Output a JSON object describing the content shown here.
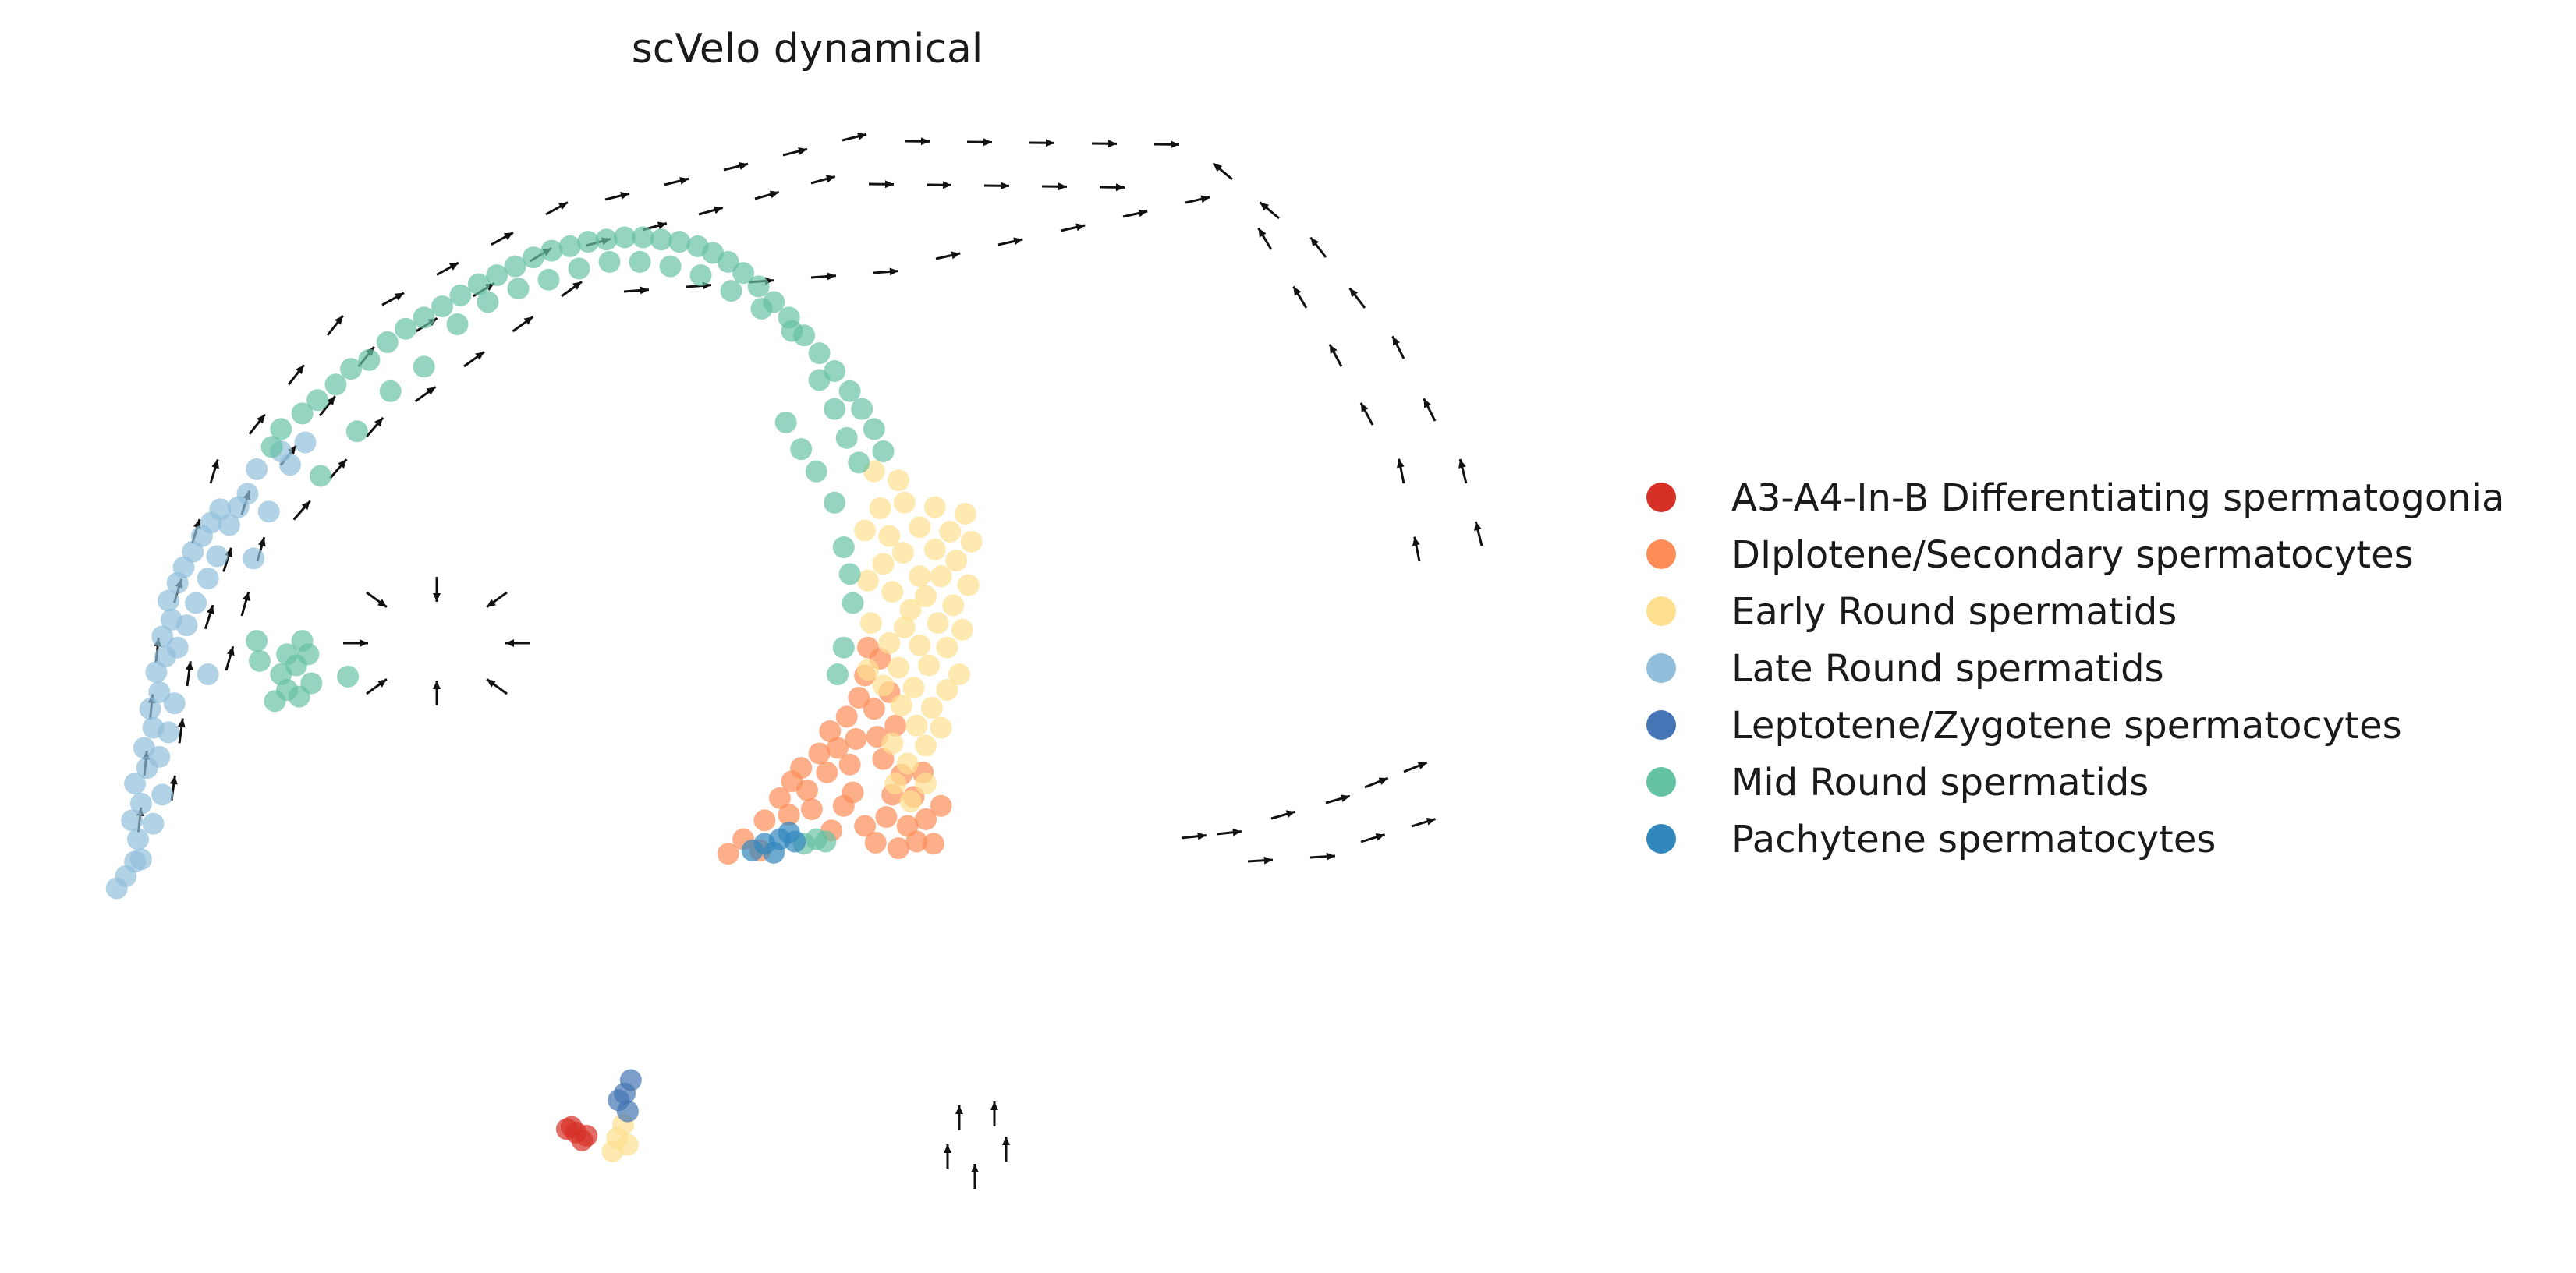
{
  "chart_data": {
    "type": "scatter",
    "title": "scVelo dynamical",
    "xlabel": "",
    "ylabel": "",
    "grid": false,
    "axes_visible": false,
    "xlim": [
      0,
      100
    ],
    "ylim": [
      0,
      100
    ],
    "legend_position": "right",
    "overlay": "velocity arrows (quiver field)",
    "series": [
      {
        "name": "A3-A4-In-B Differentiating spermatogonia",
        "color": "#d73027",
        "points": [
          [
            34.5,
            8.0
          ],
          [
            35.2,
            6.8
          ],
          [
            34.8,
            7.5
          ],
          [
            35.5,
            7.2
          ],
          [
            34.2,
            7.8
          ]
        ]
      },
      {
        "name": "DIplotene/Secondary spermatocytes",
        "color": "#fc8d59",
        "points": [
          [
            44.8,
            32.5
          ],
          [
            45.8,
            33.8
          ],
          [
            46.9,
            32.8
          ],
          [
            47.2,
            35.5
          ],
          [
            48.2,
            37.5
          ],
          [
            48.8,
            36.0
          ],
          [
            49.0,
            39.0
          ],
          [
            49.6,
            40.2
          ],
          [
            50.0,
            38.2
          ],
          [
            50.3,
            36.5
          ],
          [
            50.8,
            41.5
          ],
          [
            51.3,
            39.8
          ],
          [
            51.5,
            43.5
          ],
          [
            52.0,
            42.0
          ],
          [
            52.6,
            44.8
          ],
          [
            52.8,
            40.5
          ],
          [
            53.4,
            46.5
          ],
          [
            53.0,
            38.0
          ],
          [
            53.8,
            48.5
          ],
          [
            54.4,
            45.5
          ],
          [
            54.6,
            43.0
          ],
          [
            55.0,
            41.0
          ],
          [
            55.4,
            47.0
          ],
          [
            55.8,
            44.0
          ],
          [
            53.8,
            35.0
          ],
          [
            54.5,
            33.5
          ],
          [
            55.2,
            35.8
          ],
          [
            56.0,
            33.0
          ],
          [
            56.6,
            35.0
          ],
          [
            57.2,
            33.6
          ],
          [
            57.8,
            35.6
          ],
          [
            58.3,
            33.4
          ],
          [
            55.6,
            37.8
          ],
          [
            57.0,
            37.6
          ],
          [
            52.4,
            36.8
          ],
          [
            51.6,
            34.6
          ],
          [
            54.0,
            51.0
          ],
          [
            54.8,
            50.0
          ],
          [
            53.2,
            42.8
          ],
          [
            56.2,
            39.6
          ],
          [
            58.8,
            36.8
          ],
          [
            57.6,
            39.8
          ]
        ]
      },
      {
        "name": "Early Round spermatids",
        "color": "#fee090",
        "points": [
          [
            53.8,
            61.5
          ],
          [
            54.8,
            63.5
          ],
          [
            55.4,
            61.0
          ],
          [
            56.4,
            64.0
          ],
          [
            55.0,
            58.5
          ],
          [
            56.3,
            59.5
          ],
          [
            57.4,
            61.8
          ],
          [
            58.4,
            63.6
          ],
          [
            57.4,
            57.4
          ],
          [
            58.4,
            59.8
          ],
          [
            59.4,
            61.4
          ],
          [
            60.4,
            63.0
          ],
          [
            55.6,
            56.0
          ],
          [
            56.8,
            54.4
          ],
          [
            57.8,
            55.6
          ],
          [
            58.8,
            57.4
          ],
          [
            59.8,
            58.8
          ],
          [
            60.8,
            60.5
          ],
          [
            54.2,
            53.2
          ],
          [
            55.4,
            51.4
          ],
          [
            56.4,
            52.8
          ],
          [
            57.4,
            51.2
          ],
          [
            58.6,
            53.2
          ],
          [
            59.6,
            54.8
          ],
          [
            60.6,
            56.6
          ],
          [
            54.0,
            49.0
          ],
          [
            55.0,
            47.6
          ],
          [
            56.0,
            49.2
          ],
          [
            57.0,
            47.4
          ],
          [
            58.0,
            49.4
          ],
          [
            59.2,
            51.0
          ],
          [
            60.2,
            52.6
          ],
          [
            56.2,
            45.8
          ],
          [
            57.2,
            44.0
          ],
          [
            58.2,
            45.6
          ],
          [
            59.2,
            47.2
          ],
          [
            60.0,
            48.6
          ],
          [
            55.6,
            42.4
          ],
          [
            56.6,
            40.6
          ],
          [
            57.8,
            42.2
          ],
          [
            58.8,
            43.8
          ],
          [
            55.8,
            38.8
          ],
          [
            56.8,
            37.2
          ],
          [
            57.8,
            38.8
          ],
          [
            54.0,
            57.0
          ],
          [
            56.0,
            66.0
          ],
          [
            54.4,
            66.8
          ],
          [
            37.5,
            7.0
          ],
          [
            37.9,
            8.2
          ],
          [
            37.2,
            5.8
          ],
          [
            38.2,
            6.4
          ]
        ]
      },
      {
        "name": "Late Round spermatids",
        "color": "#91bfdb",
        "points": [
          [
            5.2,
            30.5
          ],
          [
            5.8,
            31.8
          ],
          [
            6.0,
            33.8
          ],
          [
            5.6,
            35.5
          ],
          [
            6.2,
            37.0
          ],
          [
            5.8,
            38.8
          ],
          [
            6.6,
            40.2
          ],
          [
            6.4,
            42.0
          ],
          [
            7.0,
            43.8
          ],
          [
            6.8,
            45.5
          ],
          [
            7.4,
            47.0
          ],
          [
            7.2,
            48.8
          ],
          [
            7.8,
            50.2
          ],
          [
            7.6,
            52.0
          ],
          [
            8.2,
            53.5
          ],
          [
            8.0,
            55.2
          ],
          [
            8.6,
            56.8
          ],
          [
            9.0,
            58.2
          ],
          [
            9.6,
            59.6
          ],
          [
            10.2,
            61.0
          ],
          [
            10.8,
            62.2
          ],
          [
            11.4,
            63.4
          ],
          [
            12.0,
            62.0
          ],
          [
            12.6,
            63.6
          ],
          [
            13.2,
            64.8
          ],
          [
            8.6,
            51.0
          ],
          [
            9.2,
            53.0
          ],
          [
            9.8,
            55.0
          ],
          [
            10.6,
            57.2
          ],
          [
            11.2,
            59.2
          ],
          [
            7.4,
            41.2
          ],
          [
            8.0,
            43.4
          ],
          [
            8.4,
            46.0
          ],
          [
            6.2,
            32.0
          ],
          [
            7.0,
            35.2
          ],
          [
            7.6,
            37.8
          ],
          [
            4.6,
            29.4
          ],
          [
            10.6,
            48.6
          ],
          [
            13.6,
            59.0
          ],
          [
            14.6,
            63.2
          ],
          [
            16.0,
            67.4
          ],
          [
            17.0,
            69.4
          ],
          [
            13.8,
            67.0
          ],
          [
            15.4,
            68.6
          ]
        ]
      },
      {
        "name": "Leptotene/Zygotene spermatocytes",
        "color": "#4575b4",
        "points": [
          [
            38.0,
            11.0
          ],
          [
            38.4,
            12.2
          ],
          [
            37.6,
            10.4
          ],
          [
            38.2,
            9.4
          ]
        ]
      },
      {
        "name": "Mid Round spermatids",
        "color": "#66c2a5",
        "points": [
          [
            14.8,
            69.0
          ],
          [
            15.4,
            70.6
          ],
          [
            16.8,
            72.0
          ],
          [
            17.8,
            73.2
          ],
          [
            19.0,
            74.6
          ],
          [
            20.0,
            76.0
          ],
          [
            21.2,
            76.8
          ],
          [
            22.4,
            78.4
          ],
          [
            23.6,
            79.6
          ],
          [
            24.8,
            80.6
          ],
          [
            26.0,
            81.6
          ],
          [
            27.2,
            82.6
          ],
          [
            28.4,
            83.6
          ],
          [
            29.6,
            84.4
          ],
          [
            30.8,
            85.2
          ],
          [
            32.0,
            86.0
          ],
          [
            33.2,
            86.6
          ],
          [
            34.4,
            87.0
          ],
          [
            35.6,
            87.4
          ],
          [
            36.8,
            87.6
          ],
          [
            38.0,
            87.8
          ],
          [
            39.2,
            87.8
          ],
          [
            40.4,
            87.6
          ],
          [
            41.6,
            87.4
          ],
          [
            42.8,
            87.0
          ],
          [
            43.8,
            86.4
          ],
          [
            44.8,
            85.6
          ],
          [
            45.8,
            84.6
          ],
          [
            46.8,
            83.4
          ],
          [
            47.8,
            82.0
          ],
          [
            48.8,
            80.6
          ],
          [
            49.8,
            79.0
          ],
          [
            50.8,
            77.4
          ],
          [
            51.8,
            75.8
          ],
          [
            52.8,
            74.0
          ],
          [
            53.6,
            72.4
          ],
          [
            54.4,
            70.6
          ],
          [
            55.0,
            68.6
          ],
          [
            27.0,
            80.0
          ],
          [
            29.0,
            82.0
          ],
          [
            31.0,
            83.2
          ],
          [
            33.0,
            84.0
          ],
          [
            35.0,
            85.0
          ],
          [
            37.0,
            85.6
          ],
          [
            39.0,
            85.6
          ],
          [
            41.0,
            85.2
          ],
          [
            43.0,
            84.4
          ],
          [
            45.0,
            83.0
          ],
          [
            47.0,
            81.4
          ],
          [
            49.0,
            79.4
          ],
          [
            50.8,
            75.0
          ],
          [
            51.8,
            72.4
          ],
          [
            52.6,
            69.8
          ],
          [
            53.4,
            67.6
          ],
          [
            18.0,
            66.4
          ],
          [
            20.4,
            70.4
          ],
          [
            22.6,
            74.0
          ],
          [
            24.8,
            76.2
          ],
          [
            15.0,
            46.2
          ],
          [
            15.8,
            47.2
          ],
          [
            16.6,
            46.6
          ],
          [
            17.4,
            47.8
          ],
          [
            15.4,
            48.6
          ],
          [
            16.4,
            49.4
          ],
          [
            17.2,
            50.4
          ],
          [
            15.8,
            50.4
          ],
          [
            16.8,
            51.6
          ],
          [
            14.0,
            49.8
          ],
          [
            13.8,
            51.6
          ],
          [
            19.8,
            48.4
          ],
          [
            52.4,
            60.0
          ],
          [
            52.8,
            57.6
          ],
          [
            52.4,
            51.0
          ],
          [
            52.0,
            48.6
          ],
          [
            51.2,
            33.6
          ],
          [
            50.6,
            33.8
          ],
          [
            49.8,
            33.4
          ],
          [
            53.0,
            55.0
          ],
          [
            51.8,
            64.0
          ],
          [
            50.6,
            66.8
          ],
          [
            49.6,
            68.8
          ],
          [
            48.6,
            71.2
          ]
        ]
      },
      {
        "name": "Pachytene spermatocytes",
        "color": "#3288bd",
        "points": [
          [
            47.2,
            33.4
          ],
          [
            48.2,
            33.8
          ],
          [
            49.2,
            33.6
          ],
          [
            46.4,
            32.8
          ],
          [
            48.8,
            34.4
          ],
          [
            47.8,
            32.6
          ]
        ]
      }
    ]
  }
}
